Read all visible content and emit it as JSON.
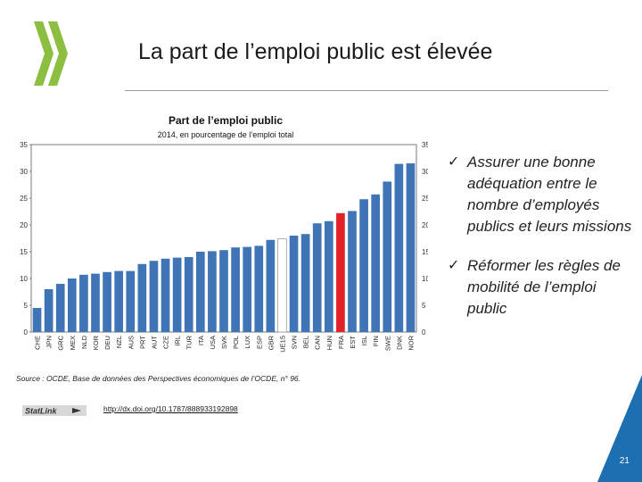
{
  "slide": {
    "title": "La part de l’emploi public est élevée",
    "page_number": "21",
    "source": "Source : OCDE, Base de données des Perspectives économiques de l’OCDE, n° 96.",
    "statlink_url": "http://dx.doi.org/10.1787/888933192898",
    "statlink_label": "StatLink",
    "bullets": [
      {
        "mark": "✓",
        "text": "Assurer une bonne adéquation entre le nombre d’employés publics et leurs missions"
      },
      {
        "mark": "✓",
        "text": "Réformer les règles de mobilité de l’emploi public"
      }
    ],
    "colors": {
      "accent": "#1c6fb0",
      "logo_green": "#8cbf3f",
      "bar": "#3f74b7",
      "highlight": "#e22228"
    }
  },
  "chart_data": {
    "type": "bar",
    "title": "Part de l’emploi public",
    "subtitle": "2014, en pourcentage de l’emploi total",
    "xlabel": "",
    "ylabel": "",
    "ylim": [
      0,
      35
    ],
    "yticks": [
      0,
      5,
      10,
      15,
      20,
      25,
      30,
      35
    ],
    "grid": false,
    "categories": [
      "CHE",
      "JPN",
      "GRC",
      "MEX",
      "NLD",
      "KOR",
      "DEU",
      "NZL",
      "AUS",
      "PRT",
      "AUT",
      "CZE",
      "IRL",
      "TUR",
      "ITA",
      "USA",
      "SVK",
      "POL",
      "LUX",
      "ESP",
      "GBR",
      "UE15",
      "SVN",
      "BEL",
      "CAN",
      "HUN",
      "FRA",
      "EST",
      "ISL",
      "FIN",
      "SWE",
      "DNK",
      "NOR"
    ],
    "values": [
      4.5,
      8.0,
      9.0,
      10.0,
      10.7,
      10.9,
      11.2,
      11.4,
      11.4,
      12.7,
      13.3,
      13.7,
      13.9,
      14.0,
      15.0,
      15.1,
      15.3,
      15.8,
      15.9,
      16.1,
      17.2,
      17.4,
      18.0,
      18.3,
      20.3,
      20.7,
      22.2,
      22.6,
      24.8,
      25.7,
      28.1,
      31.4,
      31.5
    ],
    "highlight": {
      "FRA": "red",
      "UE15": "outline"
    }
  }
}
